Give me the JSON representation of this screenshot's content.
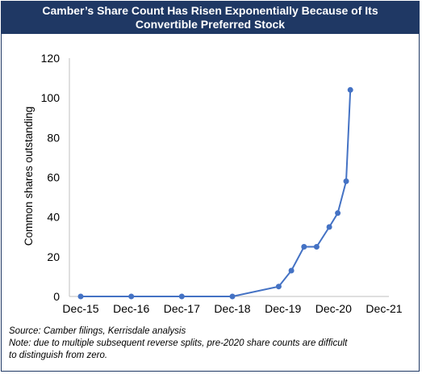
{
  "header": {
    "title_line1": "Camber’s Share Count Has Risen Exponentially Because of Its",
    "title_line2": "Convertible Preferred Stock"
  },
  "chart_data": {
    "type": "line",
    "title": "Camber’s Share Count Has Risen Exponentially Because of Its Convertible Preferred Stock",
    "ylabel": "Common shares outstanding",
    "xlabel": "",
    "x_tick_labels": [
      "Dec-15",
      "Dec-16",
      "Dec-17",
      "Dec-18",
      "Dec-19",
      "Dec-20",
      "Dec-21"
    ],
    "x_tick_dates": [
      "2015-12",
      "2016-12",
      "2017-12",
      "2018-12",
      "2019-12",
      "2020-12",
      "2021-12"
    ],
    "y_ticks": [
      0,
      20,
      40,
      60,
      80,
      100,
      120
    ],
    "ylim": [
      0,
      120
    ],
    "grid": false,
    "legend": "none",
    "line_color": "#4472c4",
    "series": [
      {
        "x": [
          "2015-12",
          "2016-12",
          "2017-12",
          "2018-12",
          "2019-11",
          "2020-02",
          "2020-05",
          "2020-08",
          "2020-11",
          "2021-01",
          "2021-03",
          "2021-04"
        ],
        "values": [
          0,
          0,
          0,
          0,
          5,
          13,
          25,
          25,
          35,
          42,
          58,
          104
        ]
      }
    ]
  },
  "footer": {
    "source": "Source: Camber filings, Kerrisdale analysis",
    "note_line1": "Note: due to multiple subsequent reverse splits, pre-2020 share counts are difficult",
    "note_line2": "to distinguish from zero."
  }
}
